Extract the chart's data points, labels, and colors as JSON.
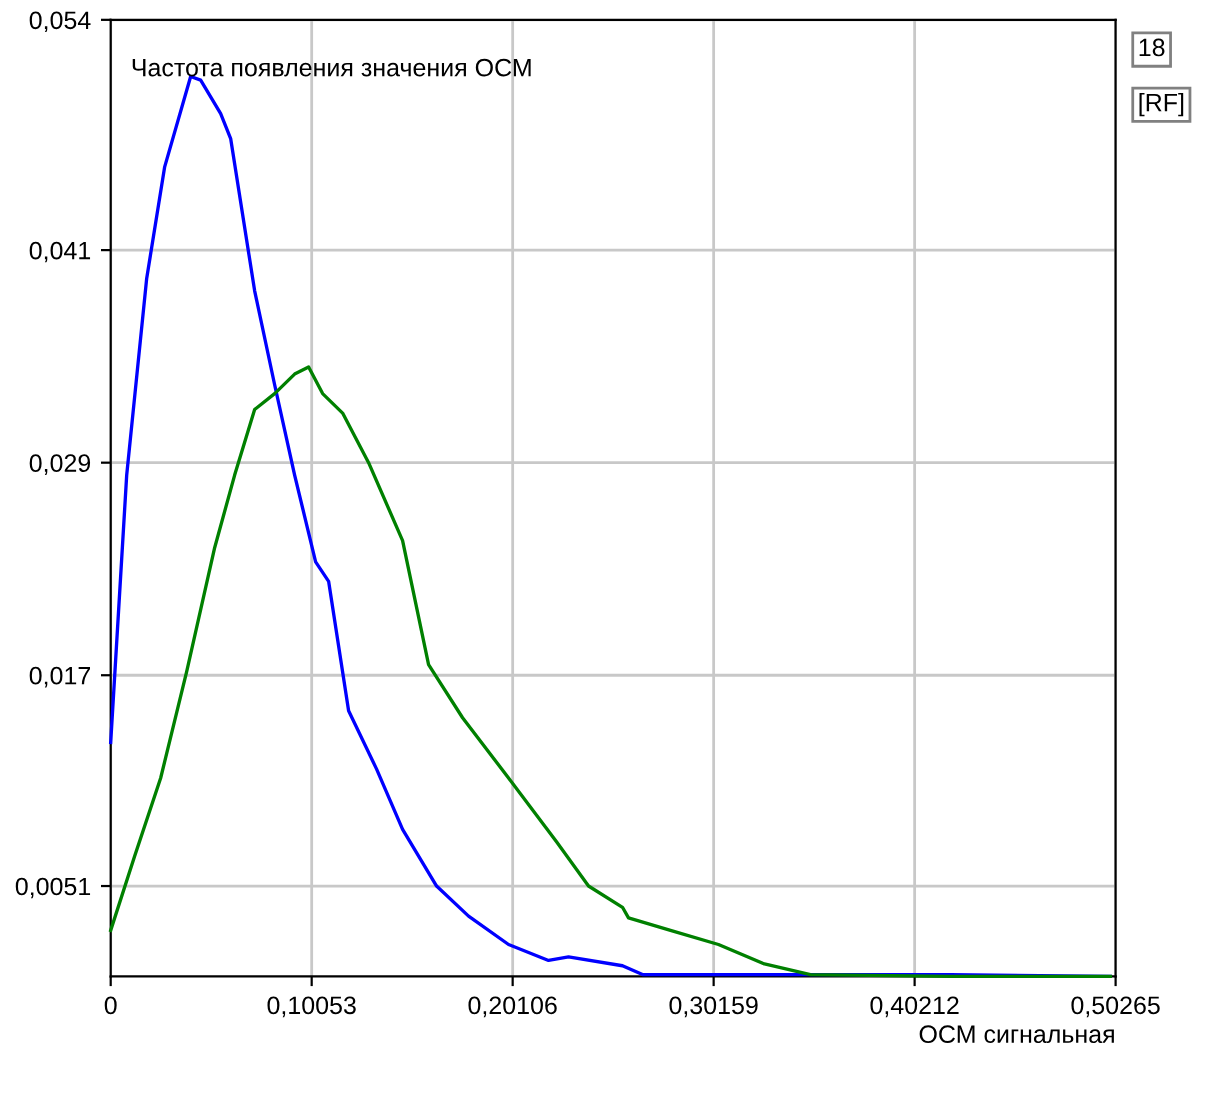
{
  "chart_data": {
    "type": "line",
    "title": "Частота появления значения ОСМ",
    "xlabel": "ОСМ сигнальная",
    "xlim": [
      0,
      0.50265
    ],
    "xticks": [
      0,
      {
        "value": 0.10053,
        "label": "0,10053"
      },
      {
        "value": 0.20106,
        "label": "0,20106"
      },
      {
        "value": 0.30159,
        "label": "0,30159"
      },
      {
        "value": 0.40212,
        "label": "0,40212"
      },
      {
        "value": 0.50265,
        "label": "0,50265"
      }
    ],
    "ylim": [
      0,
      0.054
    ],
    "yticks": [
      {
        "value": 0.0051,
        "label": "0,0051"
      },
      {
        "value": 0.017,
        "label": "0,017"
      },
      {
        "value": 0.029,
        "label": "0,029"
      },
      {
        "value": 0.041,
        "label": "0,041"
      },
      {
        "value": 0.054,
        "label": "0,054"
      }
    ],
    "grid": true,
    "marker": "none",
    "line_style": "solid",
    "annotations": [
      "18",
      "[RF]"
    ],
    "series": [
      {
        "color": "#0000ff",
        "x": [
          0,
          0.008,
          0.018,
          0.027,
          0.04,
          0.045,
          0.055,
          0.06,
          0.072,
          0.082,
          0.092,
          0.1025,
          0.109,
          0.119,
          0.133,
          0.146,
          0.163,
          0.179,
          0.199,
          0.219,
          0.229,
          0.256,
          0.266,
          0.35,
          0.42,
          0.5
        ],
        "values": [
          0.0132,
          0.0283,
          0.0394,
          0.0457,
          0.0508,
          0.0506,
          0.0487,
          0.0473,
          0.0387,
          0.0334,
          0.0283,
          0.0234,
          0.0223,
          0.015,
          0.0117,
          0.0083,
          0.0051,
          0.0034,
          0.0018,
          0.0009,
          0.0011,
          0.0006,
          0.0001,
          0.0001,
          0.0001,
          0
        ]
      },
      {
        "color": "#008000",
        "x": [
          0,
          0.012,
          0.025,
          0.038,
          0.052,
          0.062,
          0.072,
          0.082,
          0.092,
          0.099,
          0.106,
          0.116,
          0.129,
          0.146,
          0.159,
          0.176,
          0.199,
          0.223,
          0.239,
          0.256,
          0.259,
          0.28,
          0.304,
          0.327,
          0.35,
          0.42,
          0.5
        ],
        "values": [
          0.0026,
          0.0068,
          0.0112,
          0.0172,
          0.0242,
          0.0283,
          0.032,
          0.0329,
          0.034,
          0.0344,
          0.0329,
          0.0318,
          0.029,
          0.0246,
          0.0176,
          0.0146,
          0.0112,
          0.0076,
          0.0051,
          0.0039,
          0.0033,
          0.0026,
          0.0018,
          0.0007,
          0.0001,
          0,
          0
        ]
      }
    ]
  }
}
